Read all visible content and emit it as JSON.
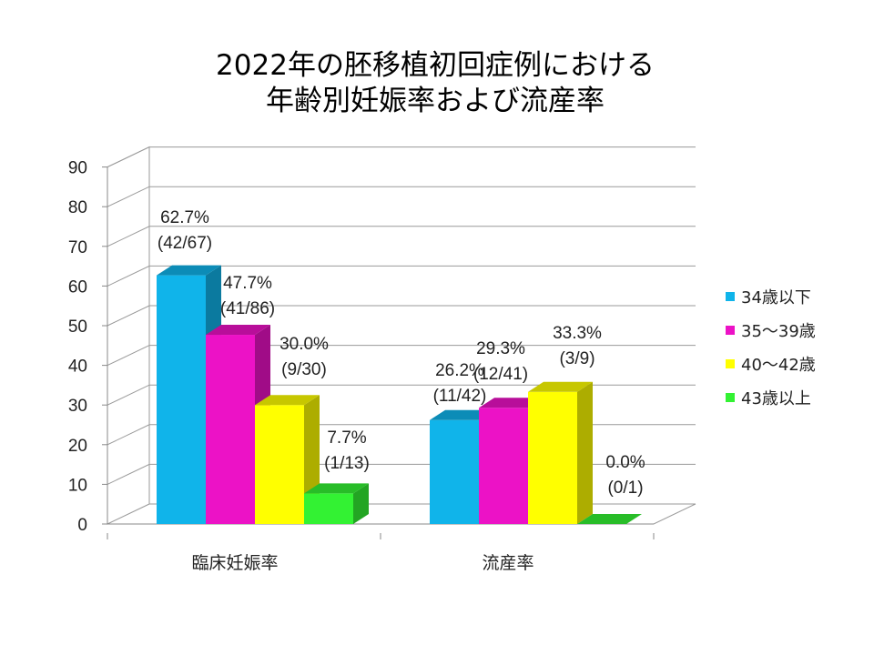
{
  "chart_data": {
    "type": "bar",
    "title_lines": [
      "2022年の胚移植初回症例における",
      "年齢別妊娠率および流産率"
    ],
    "categories": [
      "臨床妊娠率",
      "流産率"
    ],
    "ylim": [
      0,
      90
    ],
    "yticks": [
      0,
      10,
      20,
      30,
      40,
      50,
      60,
      70,
      80,
      90
    ],
    "grid": true,
    "legend_position": "right",
    "series": [
      {
        "name": "34歳以下",
        "color": "#10B4EA",
        "values": [
          62.7,
          26.2
        ],
        "labels": [
          [
            "62.7%",
            "(42/67)"
          ],
          [
            "26.2%",
            "(11/42)"
          ]
        ]
      },
      {
        "name": "35～39歳",
        "color": "#EC12C6",
        "values": [
          47.7,
          29.3
        ],
        "labels": [
          [
            "47.7%",
            "(41/86)"
          ],
          [
            "29.3%",
            "(12/41)"
          ]
        ]
      },
      {
        "name": "40～42歳",
        "color": "#FFFF00",
        "values": [
          30.0,
          33.3
        ],
        "labels": [
          [
            "30.0%",
            "(9/30)"
          ],
          [
            "33.3%",
            "(3/9)"
          ]
        ]
      },
      {
        "name": "43歳以上",
        "color": "#33F233",
        "values": [
          7.7,
          0.0
        ],
        "labels": [
          [
            "7.7%",
            "(1/13)"
          ],
          [
            "0.0%",
            "(0/1)"
          ]
        ]
      }
    ]
  }
}
